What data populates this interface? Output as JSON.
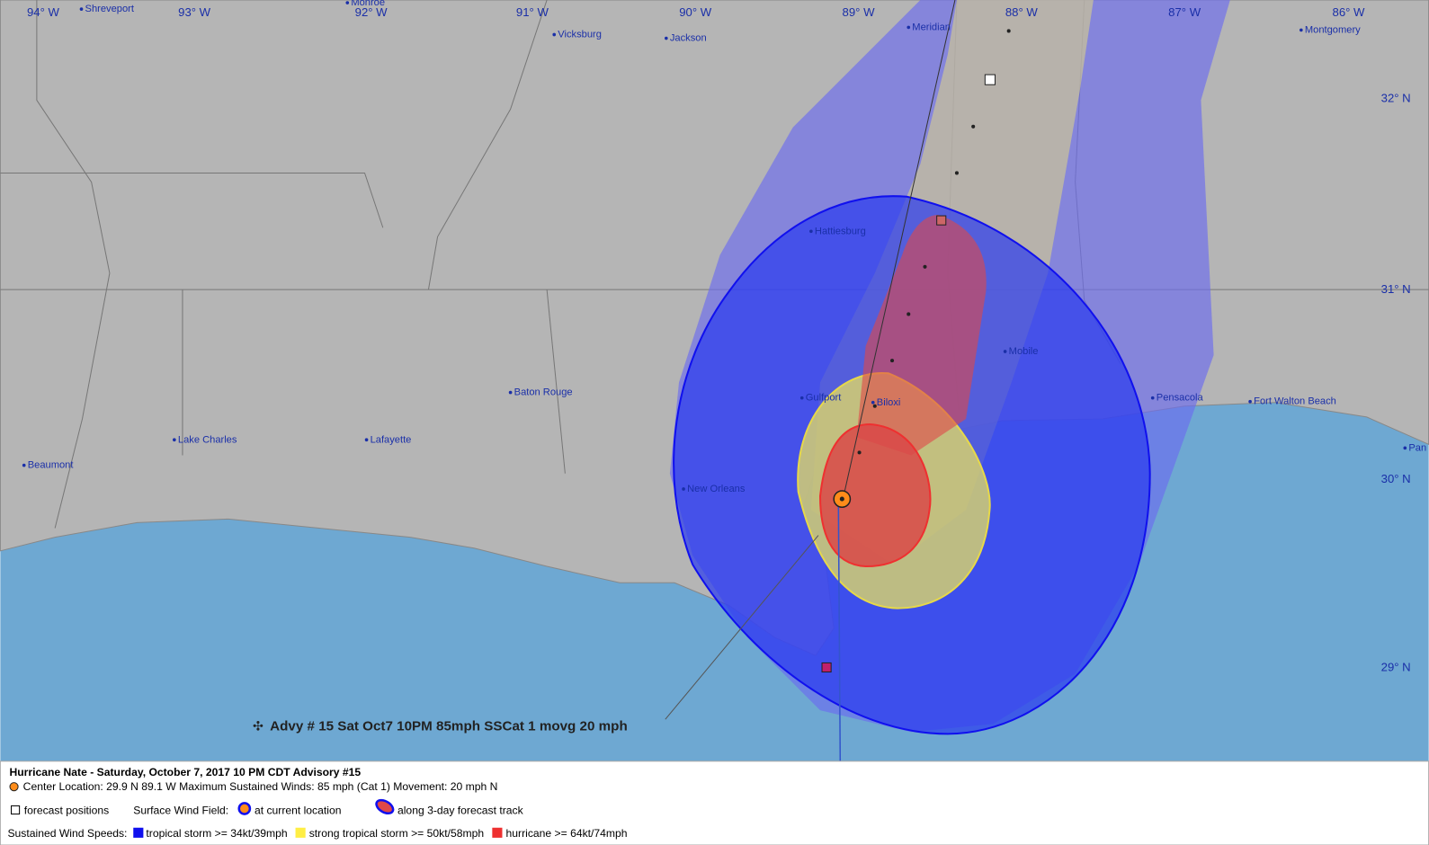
{
  "map": {
    "lon_labels": [
      "94° W",
      "93° W",
      "92° W",
      "91° W",
      "90° W",
      "89° W",
      "88° W",
      "87° W",
      "86° W"
    ],
    "lat_labels": [
      "32° N",
      "31° N",
      "30° N",
      "29° N"
    ],
    "cities": [
      "Shreveport",
      "Monroe",
      "Vicksburg",
      "Jackson",
      "Meridian",
      "Montgomery",
      "Hattiesburg",
      "Mobile",
      "Baton Rouge",
      "Gulfport",
      "Biloxi",
      "Lake Charles",
      "Lafayette",
      "Beaumont",
      "New Orleans",
      "Pensacola",
      "Fort Walton Beach",
      "Pan"
    ],
    "annotation": "Advy # 15 Sat Oct7 10PM  85mph SSCat 1 movg 20 mph"
  },
  "legend": {
    "title": "Hurricane Nate  -  Saturday, October 7, 2017  10 PM CDT   Advisory #15",
    "center_line": "Center Location: 29.9 N  89.1 W   Maximum Sustained Winds: 85 mph (Cat 1) Movement: 20 mph N",
    "forecast_positions": "forecast positions",
    "surface_wind_field": "Surface Wind Field:",
    "current": "at current location",
    "track": "along 3-day forecast track",
    "sustained": "Sustained Wind Speeds:",
    "tropical_storm": "tropical storm >= 34kt/39mph",
    "strong_tropical_storm": "strong tropical storm >= 50kt/58mph",
    "hurricane": "hurricane >= 64kt/74mph"
  }
}
